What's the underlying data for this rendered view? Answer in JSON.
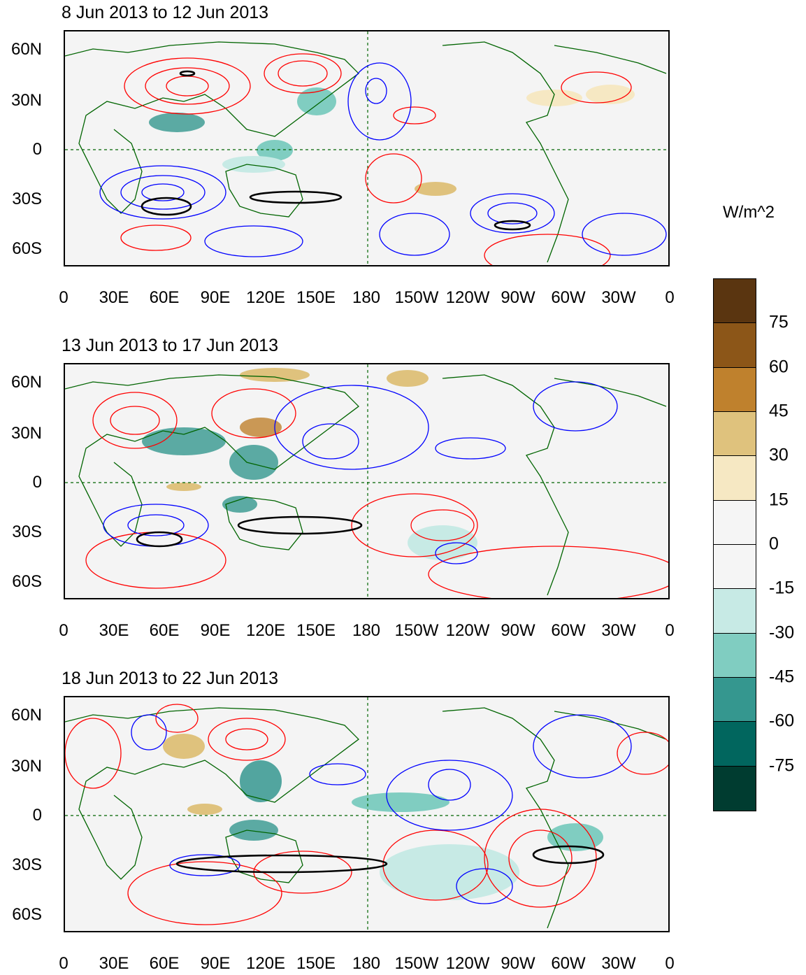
{
  "panels": [
    {
      "title": "8 Jun 2013 to 12 Jun 2013"
    },
    {
      "title": "13 Jun 2013 to 17 Jun 2013"
    },
    {
      "title": "18 Jun 2013 to 22 Jun 2013"
    }
  ],
  "y_axis_labels": [
    "60N",
    "30N",
    "0",
    "30S",
    "60S"
  ],
  "x_axis_labels": [
    "0",
    "30E",
    "60E",
    "90E",
    "120E",
    "150E",
    "180",
    "150W",
    "120W",
    "90W",
    "60W",
    "30W",
    "0"
  ],
  "colorbar": {
    "units": "W/m^2",
    "labels": [
      "75",
      "60",
      "45",
      "30",
      "15",
      "0",
      "-15",
      "-30",
      "-45",
      "-60",
      "-75"
    ],
    "colors": [
      "#5a3510",
      "#8c5618",
      "#bf812d",
      "#dfc27d",
      "#f6e8c3",
      "#f5f5f5",
      "#f5f5f5",
      "#c7eae5",
      "#80cdc1",
      "#35978f",
      "#01665e",
      "#003c30"
    ]
  },
  "contour_colors": {
    "positive": "#ff0000",
    "negative": "#0000ff",
    "significance": "#000000",
    "coastline": "#006400"
  }
}
